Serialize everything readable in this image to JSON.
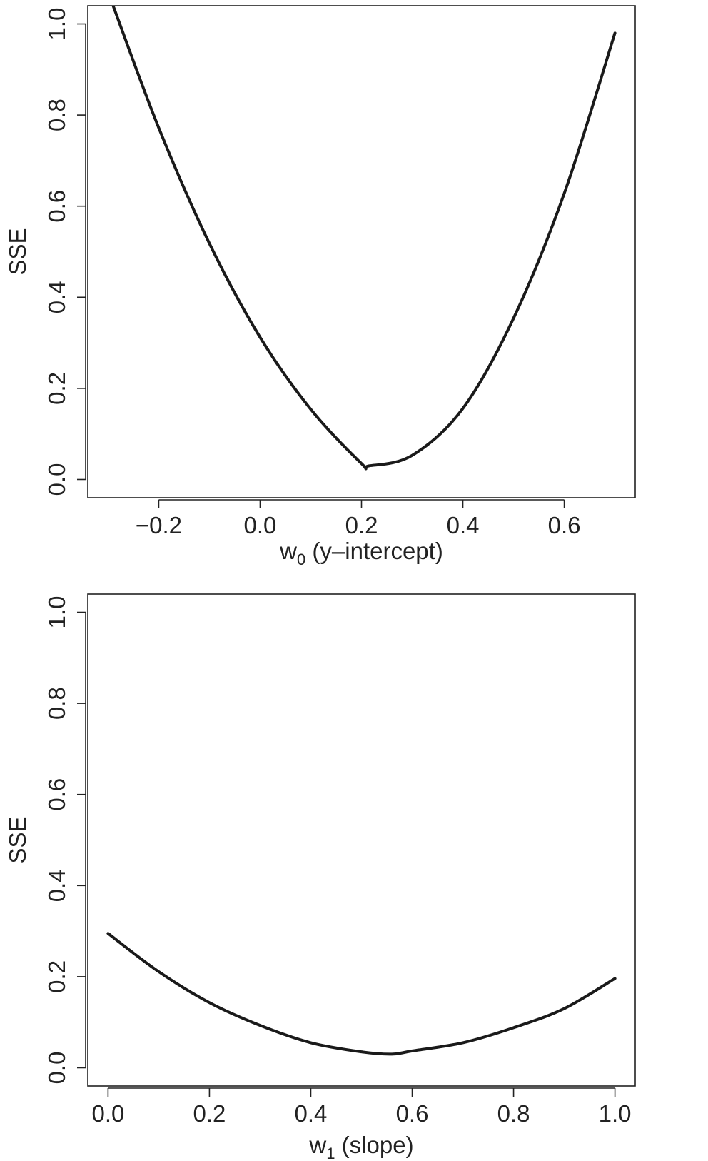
{
  "chart_data": [
    {
      "type": "line",
      "xlabel": "w0 (y–intercept)",
      "xlabel_main": "w",
      "xlabel_sub": "0",
      "xlabel_rest": " (y–intercept)",
      "ylabel": "SSE",
      "xlim": [
        -0.34,
        0.74
      ],
      "ylim": [
        -0.04,
        1.04
      ],
      "x_ticks": [
        -0.2,
        0.0,
        0.2,
        0.4,
        0.6
      ],
      "x_tick_labels": [
        "−0.2",
        "0.0",
        "0.2",
        "0.4",
        "0.6"
      ],
      "y_ticks": [
        0.0,
        0.2,
        0.4,
        0.6,
        0.8,
        1.0
      ],
      "y_tick_labels": [
        "0.0",
        "0.2",
        "0.4",
        "0.6",
        "0.8",
        "1.0"
      ],
      "grid": false,
      "series": [
        {
          "x": [
            -0.29,
            -0.2,
            -0.1,
            0.0,
            0.1,
            0.2,
            0.215,
            0.3,
            0.4,
            0.5,
            0.6,
            0.7
          ],
          "values": [
            1.04,
            0.772,
            0.518,
            0.312,
            0.154,
            0.035,
            0.03,
            0.053,
            0.156,
            0.354,
            0.628,
            0.98
          ]
        }
      ],
      "line_color": "#1a1a1a"
    },
    {
      "type": "line",
      "xlabel": "w1 (slope)",
      "xlabel_main": "w",
      "xlabel_sub": "1",
      "xlabel_rest": " (slope)",
      "ylabel": "SSE",
      "xlim": [
        -0.04,
        1.04
      ],
      "ylim": [
        -0.04,
        1.04
      ],
      "x_ticks": [
        0.0,
        0.2,
        0.4,
        0.6,
        0.8,
        1.0
      ],
      "x_tick_labels": [
        "0.0",
        "0.2",
        "0.4",
        "0.6",
        "0.8",
        "1.0"
      ],
      "y_ticks": [
        0.0,
        0.2,
        0.4,
        0.6,
        0.8,
        1.0
      ],
      "y_tick_labels": [
        "0.0",
        "0.2",
        "0.4",
        "0.6",
        "0.8",
        "1.0"
      ],
      "grid": false,
      "series": [
        {
          "x": [
            0.0,
            0.1,
            0.2,
            0.3,
            0.4,
            0.5,
            0.56,
            0.6,
            0.7,
            0.8,
            0.9,
            1.0
          ],
          "values": [
            0.295,
            0.211,
            0.143,
            0.093,
            0.055,
            0.035,
            0.03,
            0.037,
            0.055,
            0.088,
            0.13,
            0.196
          ]
        }
      ],
      "line_color": "#1a1a1a"
    }
  ]
}
